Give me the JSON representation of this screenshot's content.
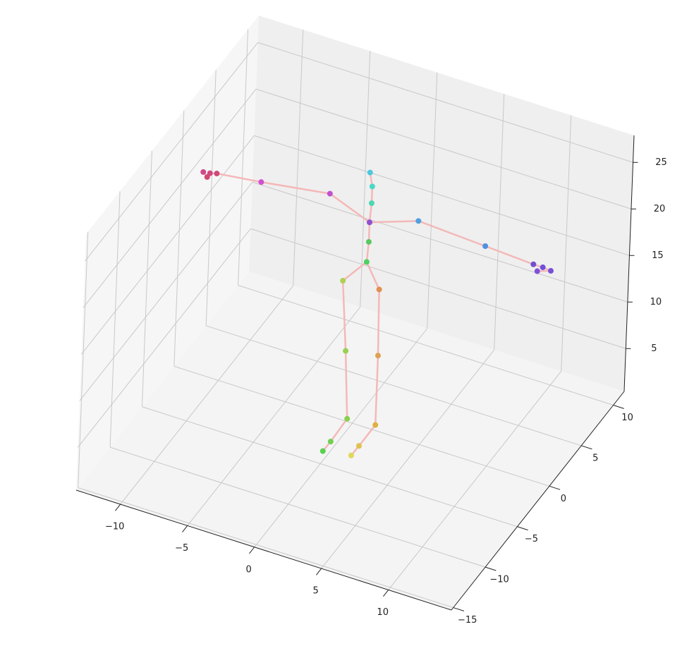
{
  "chart_data": {
    "type": "scatter3d",
    "xlim": [
      -13.3,
      14.7
    ],
    "ylim": [
      -15.3,
      11.7
    ],
    "zlim": [
      0.4,
      27.9
    ],
    "xticks": [
      {
        "value": -10,
        "label": "−10"
      },
      {
        "value": -5,
        "label": "−5"
      },
      0,
      5,
      10
    ],
    "yticks": [
      {
        "value": -15,
        "label": "−15"
      },
      {
        "value": -10,
        "label": "−10"
      },
      {
        "value": -5,
        "label": "−5"
      },
      0,
      5,
      10
    ],
    "zticks": [
      5,
      10,
      15,
      20,
      25
    ],
    "grid": true,
    "points": {
      "x": [
        0.6,
        0.8,
        0.8,
        0.7,
        0.7,
        0.6,
        -1.1,
        0.2,
        1.4,
        0.7,
        0.6,
        1.6,
        2.6,
        3.5,
        2.8,
        2.7,
        -2.3,
        -7.4,
        -10.7,
        -11.2,
        -11.4,
        -11.7,
        4.3,
        9.3,
        12.9,
        13.6,
        14.2,
        13.2
      ],
      "y": [
        0,
        0,
        0,
        0,
        0,
        0,
        0,
        -2,
        -4,
        -5,
        -6,
        0,
        -2,
        -4,
        -5,
        -6,
        0,
        0,
        0,
        0,
        0,
        0,
        0,
        0,
        0,
        0,
        0,
        0
      ],
      "z": [
        27.6,
        26.2,
        24.4,
        22.3,
        20.2,
        18.0,
        15.2,
        10.0,
        5.0,
        3.1,
        2.9,
        15.5,
        10.6,
        5.3,
        3.6,
        3.4,
        24.0,
        22.9,
        22.3,
        22.1,
        21.6,
        22.0,
        24.1,
        23.7,
        23.4,
        23.4,
        23.3,
        22.8
      ],
      "colors": [
        "#4fc8e0",
        "#48d8c8",
        "#4cd8b0",
        "#9050d0",
        "#58c860",
        "#50d060",
        "#b0d050",
        "#98d050",
        "#88d050",
        "#70d050",
        "#58d050",
        "#e09050",
        "#e0a050",
        "#e0b040",
        "#e0c050",
        "#e0d858",
        "#c050d0",
        "#d050d0",
        "#d04878",
        "#d04880",
        "#d04870",
        "#d04888",
        "#50a0e0",
        "#5090e0",
        "#7050d0",
        "#7050d8",
        "#7850d8",
        "#8050d8"
      ]
    },
    "edges": [
      [
        0,
        1
      ],
      [
        1,
        2
      ],
      [
        2,
        3
      ],
      [
        3,
        4
      ],
      [
        4,
        5
      ],
      [
        5,
        6
      ],
      [
        6,
        7
      ],
      [
        7,
        8
      ],
      [
        8,
        9
      ],
      [
        9,
        10
      ],
      [
        5,
        11
      ],
      [
        11,
        12
      ],
      [
        12,
        13
      ],
      [
        13,
        14
      ],
      [
        14,
        15
      ],
      [
        3,
        16
      ],
      [
        16,
        17
      ],
      [
        17,
        18
      ],
      [
        18,
        19
      ],
      [
        19,
        20
      ],
      [
        20,
        21
      ],
      [
        3,
        22
      ],
      [
        22,
        23
      ],
      [
        23,
        24
      ],
      [
        24,
        25
      ],
      [
        25,
        26
      ],
      [
        26,
        27
      ]
    ],
    "edge_color": "#f4b8b8"
  }
}
